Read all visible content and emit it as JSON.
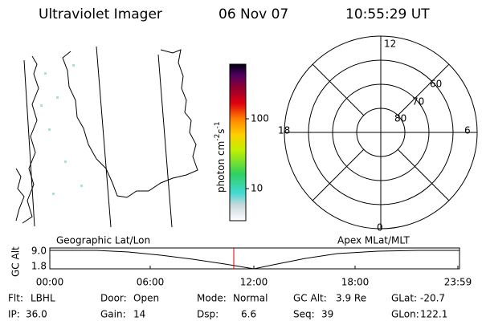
{
  "header": {
    "title": "Ultraviolet Imager",
    "date": "06 Nov 07",
    "time": "10:55:29 UT"
  },
  "colorbar": {
    "unit_main": "photon cm",
    "unit_exp1": "-2",
    "unit_mid": "s",
    "unit_exp2": "-1",
    "ticks": [
      "100",
      "10"
    ]
  },
  "polar": {
    "top": "12",
    "left": "18",
    "right": "6",
    "bottom": "0",
    "rings": [
      "60",
      "70",
      "80"
    ]
  },
  "timeline": {
    "left_title": "Geographic Lat/Lon",
    "right_title": "Apex MLat/MLT",
    "axis_label": "GC Alt",
    "y_labels": [
      "9.0",
      "1.8"
    ],
    "x_labels": [
      "00:00",
      "06:00",
      "12:00",
      "18:00",
      "23:59"
    ]
  },
  "info": [
    [
      {
        "label": "Flt:",
        "value": "LBHL"
      },
      {
        "label": "Door:",
        "value": "Open"
      },
      {
        "label": "Mode:",
        "value": "Normal"
      },
      {
        "label": "GC Alt:",
        "value": "3.9 Re"
      },
      {
        "label": "GLat:",
        "value": "-20.7"
      }
    ],
    [
      {
        "label": "IP:",
        "value": "36.0"
      },
      {
        "label": "Gain:",
        "value": "14"
      },
      {
        "label": "Dsp:",
        "value": "6.6"
      },
      {
        "label": "Seq:",
        "value": "39"
      },
      {
        "label": "GLon:",
        "value": "122.1"
      }
    ]
  ]
}
